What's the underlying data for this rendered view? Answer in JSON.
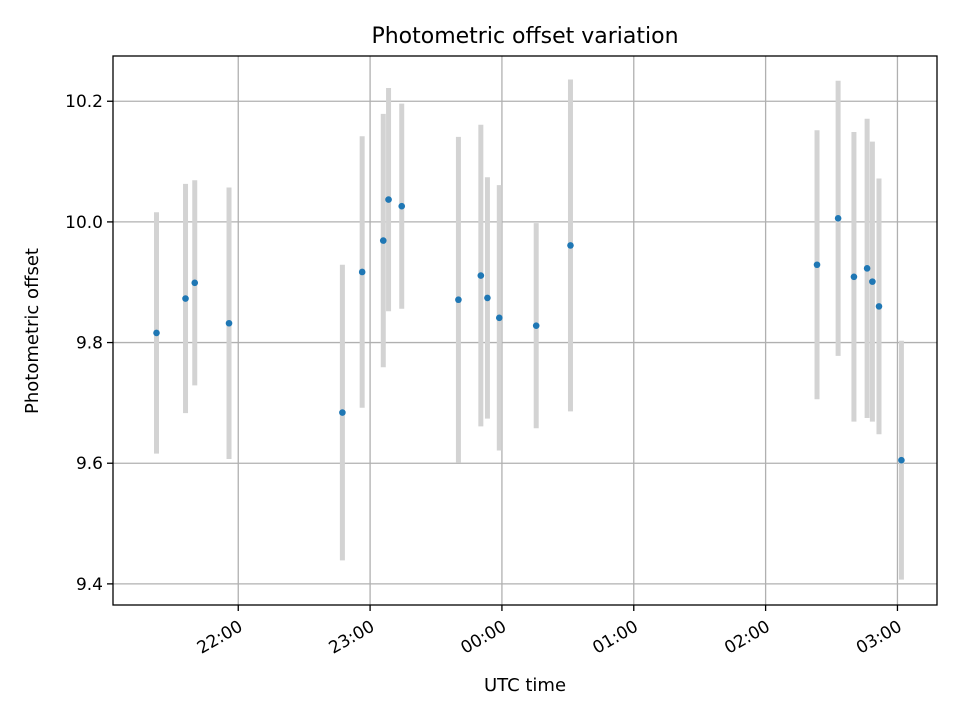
{
  "chart_data": {
    "type": "scatter",
    "title": "Photometric offset variation",
    "xlabel": "UTC time",
    "ylabel": "Photometric offset",
    "x_unit": "hours since 00:00 UTC (negative = previous day)",
    "xlim": [
      -2.95,
      3.3
    ],
    "ylim": [
      9.365,
      10.275
    ],
    "x_ticks": [
      {
        "value": -2,
        "label": "22:00"
      },
      {
        "value": -1,
        "label": "23:00"
      },
      {
        "value": 0,
        "label": "00:00"
      },
      {
        "value": 1,
        "label": "01:00"
      },
      {
        "value": 2,
        "label": "02:00"
      },
      {
        "value": 3,
        "label": "03:00"
      }
    ],
    "y_ticks": [
      {
        "value": 9.4,
        "label": "9.4"
      },
      {
        "value": 9.6,
        "label": "9.6"
      },
      {
        "value": 9.8,
        "label": "9.8"
      },
      {
        "value": 10.0,
        "label": "10.0"
      },
      {
        "value": 10.2,
        "label": "10.2"
      }
    ],
    "grid": true,
    "marker_color": "#1f77b4",
    "errorbar_color": "#d3d3d3",
    "points": [
      {
        "x": -2.62,
        "y": 9.816,
        "err": 0.2
      },
      {
        "x": -2.4,
        "y": 9.873,
        "err": 0.19
      },
      {
        "x": -2.33,
        "y": 9.899,
        "err": 0.17
      },
      {
        "x": -2.07,
        "y": 9.832,
        "err": 0.225
      },
      {
        "x": -1.21,
        "y": 9.684,
        "err": 0.245
      },
      {
        "x": -1.06,
        "y": 9.917,
        "err": 0.225
      },
      {
        "x": -0.9,
        "y": 9.969,
        "err": 0.21
      },
      {
        "x": -0.86,
        "y": 10.037,
        "err": 0.185
      },
      {
        "x": -0.76,
        "y": 10.026,
        "err": 0.17
      },
      {
        "x": -0.33,
        "y": 9.871,
        "err": 0.27
      },
      {
        "x": -0.16,
        "y": 9.911,
        "err": 0.25
      },
      {
        "x": -0.11,
        "y": 9.874,
        "err": 0.2
      },
      {
        "x": -0.02,
        "y": 9.841,
        "err": 0.22
      },
      {
        "x": 0.26,
        "y": 9.828,
        "err": 0.17
      },
      {
        "x": 0.52,
        "y": 9.961,
        "err": 0.275
      },
      {
        "x": 2.39,
        "y": 9.929,
        "err": 0.223
      },
      {
        "x": 2.55,
        "y": 10.006,
        "err": 0.228
      },
      {
        "x": 2.67,
        "y": 9.909,
        "err": 0.24
      },
      {
        "x": 2.77,
        "y": 9.923,
        "err": 0.248
      },
      {
        "x": 2.81,
        "y": 9.901,
        "err": 0.232
      },
      {
        "x": 2.86,
        "y": 9.86,
        "err": 0.212
      },
      {
        "x": 3.03,
        "y": 9.605,
        "err": 0.198
      }
    ]
  }
}
